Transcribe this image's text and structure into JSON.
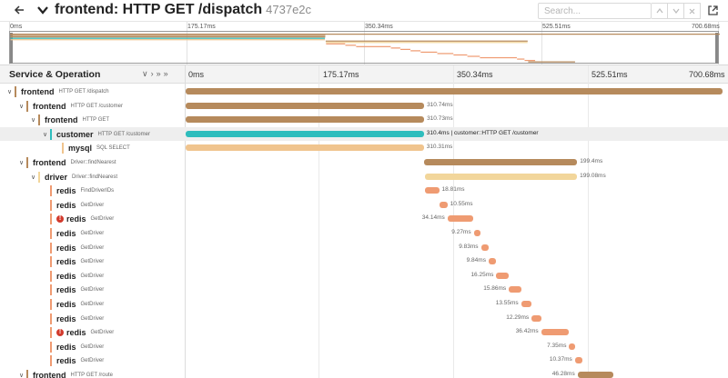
{
  "header": {
    "title": "frontend: HTTP GET /dispatch",
    "trace_id": "4737e2c",
    "search_placeholder": "Search..."
  },
  "colors": {
    "frontend": "#b68a5c",
    "customer": "#2ebdbd",
    "mysql": "#f0c48e",
    "driver": "#f2d69b",
    "redis": "#ef9b72",
    "error": "#d23a2d"
  },
  "minimap": {
    "ticks": [
      "0ms",
      "175.17ms",
      "350.34ms",
      "525.51ms",
      "700.68ms"
    ]
  },
  "columns": {
    "title": "Service & Operation",
    "ticks": [
      "0ms",
      "175.17ms",
      "350.34ms",
      "525.51ms",
      "700.68ms"
    ]
  },
  "spans": [
    {
      "depth": 0,
      "expandable": true,
      "service": "frontend",
      "operation": "HTTP GET /dispatch",
      "color": "frontend",
      "start_ms": 0,
      "duration_ms": 700.68,
      "label": "",
      "error": false
    },
    {
      "depth": 1,
      "expandable": true,
      "service": "frontend",
      "operation": "HTTP GET /customer",
      "color": "frontend",
      "start_ms": 0.5,
      "duration_ms": 310.74,
      "label": "310.74ms",
      "error": false
    },
    {
      "depth": 2,
      "expandable": true,
      "service": "frontend",
      "operation": "HTTP GET",
      "color": "frontend",
      "start_ms": 0.5,
      "duration_ms": 310.73,
      "label": "310.73ms",
      "error": false
    },
    {
      "depth": 3,
      "expandable": true,
      "service": "customer",
      "operation": "HTTP GET /customer",
      "color": "customer",
      "start_ms": 0.5,
      "duration_ms": 310.4,
      "label": "310.4ms | customer::HTTP GET /customer",
      "error": false,
      "highlight": true
    },
    {
      "depth": 4,
      "expandable": false,
      "service": "mysql",
      "operation": "SQL SELECT",
      "color": "mysql",
      "start_ms": 0.5,
      "duration_ms": 310.31,
      "label": "310.31ms",
      "error": false
    },
    {
      "depth": 1,
      "expandable": true,
      "service": "frontend",
      "operation": "Driver::findNearest",
      "color": "frontend",
      "start_ms": 311.6,
      "duration_ms": 199.4,
      "label": "199.4ms",
      "error": false
    },
    {
      "depth": 2,
      "expandable": true,
      "service": "driver",
      "operation": "Driver::findNearest",
      "color": "driver",
      "start_ms": 311.8,
      "duration_ms": 199.08,
      "label": "199.08ms",
      "error": false
    },
    {
      "depth": 3,
      "expandable": false,
      "service": "redis",
      "operation": "FindDriverIDs",
      "color": "redis",
      "start_ms": 312,
      "duration_ms": 18.81,
      "label": "18.81ms",
      "error": false
    },
    {
      "depth": 3,
      "expandable": false,
      "service": "redis",
      "operation": "GetDriver",
      "color": "redis",
      "start_ms": 331,
      "duration_ms": 10.55,
      "label": "10.55ms",
      "error": false
    },
    {
      "depth": 3,
      "expandable": false,
      "service": "redis",
      "operation": "GetDriver",
      "color": "redis",
      "start_ms": 341.7,
      "duration_ms": 34.14,
      "label": "34.14ms",
      "error": true,
      "label_left": true
    },
    {
      "depth": 3,
      "expandable": false,
      "service": "redis",
      "operation": "GetDriver",
      "color": "redis",
      "start_ms": 376,
      "duration_ms": 9.27,
      "label": "9.27ms",
      "error": false,
      "label_left": true
    },
    {
      "depth": 3,
      "expandable": false,
      "service": "redis",
      "operation": "GetDriver",
      "color": "redis",
      "start_ms": 385.4,
      "duration_ms": 9.83,
      "label": "9.83ms",
      "error": false,
      "label_left": true
    },
    {
      "depth": 3,
      "expandable": false,
      "service": "redis",
      "operation": "GetDriver",
      "color": "redis",
      "start_ms": 395.4,
      "duration_ms": 9.84,
      "label": "9.84ms",
      "error": false,
      "label_left": true
    },
    {
      "depth": 3,
      "expandable": false,
      "service": "redis",
      "operation": "GetDriver",
      "color": "redis",
      "start_ms": 405.4,
      "duration_ms": 16.25,
      "label": "16.25ms",
      "error": false,
      "label_left": true
    },
    {
      "depth": 3,
      "expandable": false,
      "service": "redis",
      "operation": "GetDriver",
      "color": "redis",
      "start_ms": 421.8,
      "duration_ms": 15.86,
      "label": "15.86ms",
      "error": false,
      "label_left": true
    },
    {
      "depth": 3,
      "expandable": false,
      "service": "redis",
      "operation": "GetDriver",
      "color": "redis",
      "start_ms": 437.8,
      "duration_ms": 13.55,
      "label": "13.55ms",
      "error": false,
      "label_left": true
    },
    {
      "depth": 3,
      "expandable": false,
      "service": "redis",
      "operation": "GetDriver",
      "color": "redis",
      "start_ms": 451.5,
      "duration_ms": 12.29,
      "label": "12.29ms",
      "error": false,
      "label_left": true
    },
    {
      "depth": 3,
      "expandable": false,
      "service": "redis",
      "operation": "GetDriver",
      "color": "redis",
      "start_ms": 463.9,
      "duration_ms": 36.42,
      "label": "36.42ms",
      "error": true,
      "label_left": true
    },
    {
      "depth": 3,
      "expandable": false,
      "service": "redis",
      "operation": "GetDriver",
      "color": "redis",
      "start_ms": 500.5,
      "duration_ms": 7.35,
      "label": "7.35ms",
      "error": false,
      "label_left": true
    },
    {
      "depth": 3,
      "expandable": false,
      "service": "redis",
      "operation": "GetDriver",
      "color": "redis",
      "start_ms": 508,
      "duration_ms": 10.37,
      "label": "10.37ms",
      "error": false,
      "label_left": true
    },
    {
      "depth": 1,
      "expandable": true,
      "service": "frontend",
      "operation": "HTTP GET /route",
      "color": "frontend",
      "start_ms": 511.5,
      "duration_ms": 46.28,
      "label": "46.28ms",
      "error": false,
      "label_left": true
    }
  ]
}
